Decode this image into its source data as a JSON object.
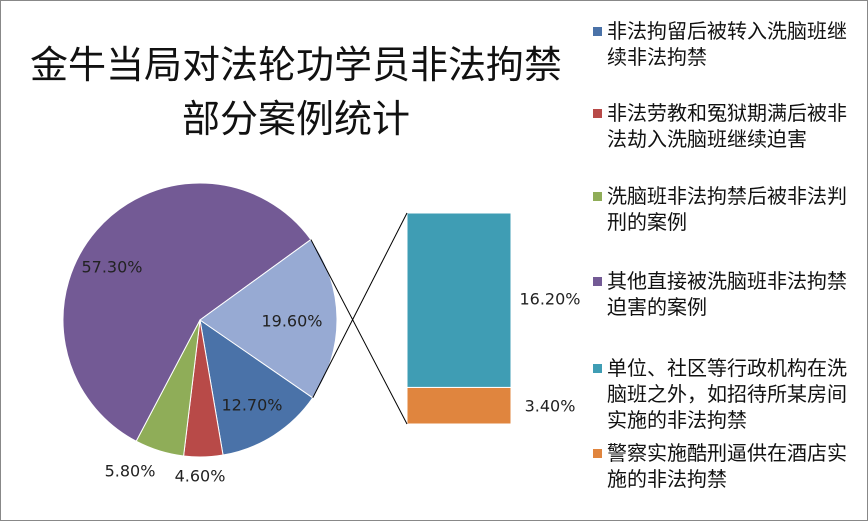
{
  "chart_data": {
    "type": "pie_of_bar",
    "title": "金牛当局对法轮功学员非法拘禁部分案例统计",
    "categories": [
      "非法拘留后被转入洗脑班继续非法拘禁",
      "非法劳教和冤狱期满后被非法劫入洗脑班继续迫害",
      "洗脑班非法拘禁后被非法判刑的案例",
      "其他直接被洗脑班非法拘禁迫害的案例",
      "单位、社区等行政机构在洗脑班之外，如招待所某房间实施的非法拘禁",
      "警察实施酷刑逼供在酒店实施的非法拘禁"
    ],
    "colors": [
      "#4a72a8",
      "#b84a48",
      "#8fad58",
      "#735a95",
      "#3f9db4",
      "#e0853e"
    ],
    "pie": {
      "values": [
        12.7,
        4.6,
        5.8,
        57.3,
        19.6
      ],
      "value_labels": [
        "12.70%",
        "4.60%",
        "5.80%",
        "57.30%",
        "19.60%"
      ],
      "other_color": "#97aad3"
    },
    "bar": {
      "values": [
        16.2,
        3.4
      ],
      "value_labels": [
        "16.20%",
        "3.40%"
      ]
    }
  }
}
